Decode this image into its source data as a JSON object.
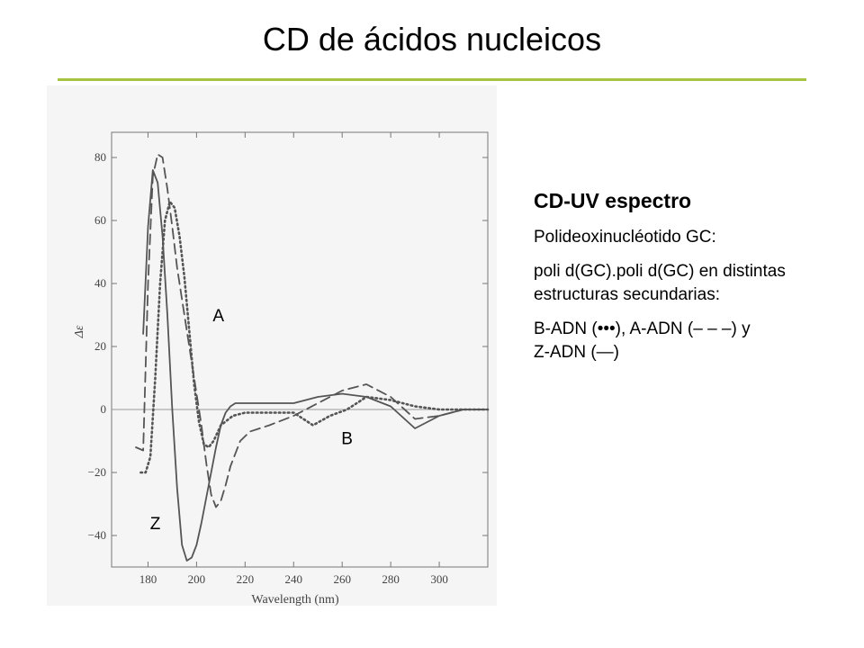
{
  "slide": {
    "title": "CD de ácidos nucleicos",
    "accent_color": "#a7c440"
  },
  "info": {
    "heading": "CD-UV espectro",
    "line1": "Polideoxinucléotido  GC:",
    "line2a": "poli d(GC).poli d(GC) en distintas",
    "line2b": "estructuras secundarias:",
    "line3a": "B-ADN (•••),  A-ADN (– – –)  y",
    "line3b": "Z-ADN (—)"
  },
  "chart_data": {
    "type": "line",
    "xlabel": "Wavelength (nm)",
    "ylabel": "Δε",
    "xlim": [
      165,
      320
    ],
    "ylim": [
      -50,
      88
    ],
    "xticks": [
      "180",
      "200",
      "220",
      "240",
      "260",
      "280",
      "300"
    ],
    "yticks": [
      "80",
      "60",
      "40",
      "20",
      "0",
      "−20",
      "−40"
    ],
    "zero_line": true,
    "series_labels": [
      {
        "text": "A",
        "x": 209,
        "y": 28
      },
      {
        "text": "B",
        "x": 262,
        "y": -11
      },
      {
        "text": "Z",
        "x": 183,
        "y": -38
      }
    ],
    "series": [
      {
        "style": "solid",
        "x": [
          178,
          180,
          182,
          184,
          186,
          188,
          190,
          192,
          194,
          196,
          198,
          200,
          202,
          204,
          206,
          208,
          210,
          212,
          214,
          216,
          220,
          230,
          240,
          250,
          260,
          270,
          280,
          290,
          300,
          310,
          320
        ],
        "y": [
          24,
          58,
          76,
          72,
          55,
          30,
          0,
          -25,
          -43,
          -48,
          -47,
          -43,
          -36,
          -28,
          -20,
          -12,
          -5,
          -1,
          1,
          2,
          2,
          2,
          2,
          4,
          5,
          4,
          1,
          -6,
          -2,
          0,
          0
        ]
      },
      {
        "style": "dashed",
        "x": [
          175,
          178,
          180,
          182,
          184,
          186,
          188,
          190,
          192,
          194,
          196,
          198,
          200,
          202,
          204,
          206,
          208,
          210,
          212,
          214,
          218,
          222,
          226,
          230,
          240,
          250,
          260,
          270,
          280,
          290,
          300,
          310,
          320
        ],
        "y": [
          -12,
          -13,
          40,
          74,
          81,
          80,
          70,
          58,
          45,
          35,
          25,
          15,
          5,
          -5,
          -17,
          -27,
          -31,
          -29,
          -24,
          -18,
          -10,
          -7,
          -6,
          -5,
          -2,
          2,
          6,
          8,
          4,
          -3,
          -2,
          0,
          0
        ]
      },
      {
        "style": "dotted",
        "x": [
          177,
          179,
          181,
          183,
          185,
          187,
          189,
          191,
          193,
          195,
          197,
          199,
          201,
          203,
          205,
          207,
          210,
          215,
          220,
          230,
          240,
          248,
          255,
          262,
          270,
          280,
          290,
          300,
          310,
          320
        ],
        "y": [
          -20,
          -20,
          -15,
          10,
          40,
          60,
          66,
          64,
          55,
          42,
          25,
          8,
          -4,
          -11,
          -12,
          -10,
          -5,
          -2,
          -1,
          -1,
          -1,
          -5,
          -2,
          0,
          4,
          3,
          1,
          0,
          0,
          0
        ]
      }
    ]
  }
}
